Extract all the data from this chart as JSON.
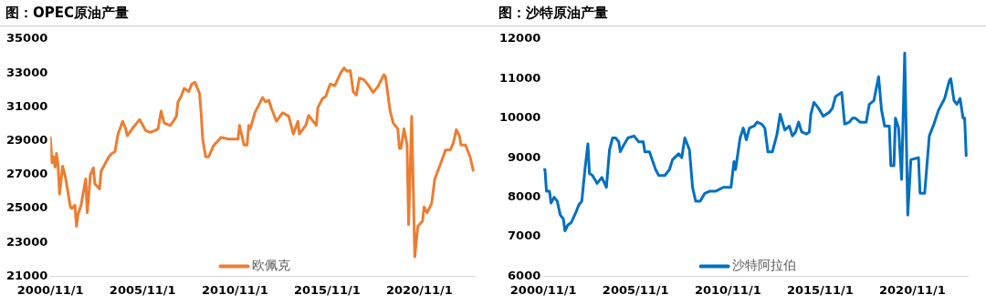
{
  "chart_data": [
    {
      "type": "line",
      "title": "图：OPEC原油产量",
      "series": [
        {
          "name": "欧佩克",
          "color": "#ed7d31",
          "x": [
            "2000-11",
            "2000-12",
            "2001-01",
            "2001-02",
            "2001-03",
            "2001-04",
            "2001-05",
            "2001-07",
            "2001-09",
            "2001-12",
            "2002-01",
            "2002-03",
            "2002-04",
            "2002-05",
            "2002-07",
            "2002-10",
            "2002-11",
            "2003-01",
            "2003-03",
            "2003-04",
            "2003-07",
            "2003-08",
            "2004-01",
            "2004-03",
            "2004-05",
            "2004-07",
            "2004-10",
            "2004-12",
            "2005-01",
            "2005-05",
            "2005-09",
            "2006-01",
            "2006-04",
            "2006-07",
            "2006-09",
            "2006-11",
            "2007-01",
            "2007-05",
            "2007-07",
            "2007-09",
            "2007-10",
            "2007-12",
            "2008-02",
            "2008-05",
            "2008-07",
            "2008-09",
            "2008-12",
            "2009-01",
            "2009-02",
            "2009-04",
            "2009-06",
            "2009-09",
            "2010-02",
            "2010-07",
            "2011-01",
            "2011-02",
            "2011-05",
            "2011-07",
            "2011-08",
            "2011-09",
            "2011-12",
            "2012-05",
            "2012-07",
            "2012-09",
            "2012-11",
            "2013-02",
            "2013-06",
            "2013-10",
            "2014-01",
            "2014-04",
            "2014-05",
            "2014-09",
            "2014-11",
            "2015-04",
            "2015-05",
            "2015-08",
            "2015-10",
            "2016-01",
            "2016-04",
            "2016-06",
            "2016-08",
            "2016-10",
            "2016-12",
            "2017-02",
            "2017-04",
            "2017-06",
            "2017-08",
            "2017-11",
            "2018-02",
            "2018-05",
            "2018-08",
            "2018-12",
            "2019-01",
            "2019-04",
            "2019-06",
            "2019-09",
            "2019-10",
            "2019-11",
            "2020-01",
            "2020-03",
            "2020-04",
            "2020-06",
            "2020-08",
            "2020-10",
            "2021-01",
            "2021-02",
            "2021-04",
            "2021-07",
            "2021-09",
            "2022-01",
            "2022-04",
            "2022-07",
            "2022-09",
            "2022-11",
            "2023-01",
            "2023-02",
            "2023-05",
            "2023-08",
            "2023-10"
          ],
          "values": [
            29200,
            27700,
            28050,
            27450,
            28250,
            27600,
            25850,
            27500,
            26750,
            25100,
            25000,
            25200,
            23950,
            24650,
            25200,
            26750,
            24750,
            27000,
            27400,
            26450,
            26150,
            27200,
            28050,
            28250,
            28350,
            29400,
            30150,
            29700,
            29300,
            29800,
            30250,
            29600,
            29500,
            29600,
            29700,
            30750,
            30050,
            29900,
            30150,
            30450,
            31300,
            31600,
            32100,
            31900,
            32350,
            32450,
            31800,
            30650,
            29100,
            28050,
            28050,
            28700,
            29200,
            29100,
            29100,
            29900,
            28750,
            28750,
            29900,
            29700,
            30650,
            31550,
            31300,
            31400,
            30850,
            30150,
            30650,
            30450,
            29400,
            30150,
            29400,
            29900,
            30500,
            29900,
            30950,
            31500,
            31600,
            32350,
            32250,
            32650,
            33050,
            33300,
            33100,
            33150,
            31900,
            31700,
            32700,
            32600,
            32250,
            31850,
            32200,
            32900,
            32750,
            30750,
            30050,
            29700,
            28550,
            28550,
            29700,
            28750,
            24050,
            30450,
            22150,
            23950,
            24250,
            25100,
            24750,
            25300,
            26750,
            27700,
            28450,
            28450,
            28850,
            29650,
            29300,
            28750,
            28750,
            28050,
            27250
          ]
        }
      ],
      "xlim": [
        "2000-11-01",
        "2023-11-01"
      ],
      "xticks": [
        {
          "value": "2000-11-01",
          "label": "2000/11/1"
        },
        {
          "value": "2005-11-01",
          "label": "2005/11/1"
        },
        {
          "value": "2010-11-01",
          "label": "2010/11/1"
        },
        {
          "value": "2015-11-01",
          "label": "2015/11/1"
        },
        {
          "value": "2020-11-01",
          "label": "2020/11/1"
        }
      ],
      "ylim": [
        21000,
        35000
      ],
      "yticks": [
        21000,
        23000,
        25000,
        27000,
        29000,
        31000,
        33000,
        35000
      ],
      "grid": false,
      "legend": "bottom",
      "marker": "none",
      "line_style": "solid"
    },
    {
      "type": "line",
      "title": "图：沙特原油产量",
      "series": [
        {
          "name": "沙特阿拉伯",
          "color": "#0070c0",
          "x": [
            "2000-11",
            "2000-12",
            "2001-01",
            "2001-03",
            "2001-04",
            "2001-06",
            "2001-08",
            "2001-10",
            "2001-12",
            "2002-01",
            "2002-03",
            "2002-05",
            "2002-08",
            "2002-10",
            "2002-12",
            "2003-02",
            "2003-04",
            "2003-05",
            "2003-07",
            "2003-10",
            "2004-01",
            "2004-04",
            "2004-06",
            "2004-08",
            "2004-10",
            "2004-12",
            "2005-01",
            "2005-03",
            "2005-06",
            "2005-10",
            "2006-01",
            "2006-04",
            "2006-05",
            "2006-08",
            "2006-12",
            "2007-02",
            "2007-06",
            "2007-09",
            "2007-11",
            "2008-03",
            "2008-05",
            "2008-07",
            "2008-10",
            "2008-12",
            "2009-02",
            "2009-05",
            "2009-08",
            "2009-11",
            "2010-03",
            "2010-08",
            "2010-12",
            "2011-01",
            "2011-03",
            "2011-04",
            "2011-07",
            "2011-09",
            "2011-11",
            "2012-01",
            "2012-04",
            "2012-06",
            "2012-09",
            "2012-11",
            "2013-01",
            "2013-04",
            "2013-07",
            "2013-09",
            "2013-12",
            "2014-03",
            "2014-05",
            "2014-07",
            "2014-09",
            "2014-11",
            "2015-02",
            "2015-04",
            "2015-05",
            "2015-07",
            "2015-10",
            "2016-01",
            "2016-05",
            "2016-07",
            "2016-09",
            "2016-11",
            "2017-01",
            "2017-03",
            "2017-06",
            "2017-08",
            "2017-10",
            "2018-01",
            "2018-05",
            "2018-07",
            "2018-10",
            "2019-01",
            "2019-03",
            "2019-05",
            "2019-08",
            "2019-09",
            "2019-11",
            "2019-12",
            "2020-02",
            "2020-04",
            "2020-06",
            "2020-08",
            "2020-10",
            "2021-03",
            "2021-04",
            "2021-07",
            "2021-10",
            "2022-01",
            "2022-04",
            "2022-08",
            "2022-11",
            "2022-12",
            "2023-02",
            "2023-04",
            "2023-06",
            "2023-08",
            "2023-09",
            "2023-10"
          ],
          "values": [
            8700,
            8700,
            8150,
            8150,
            7850,
            8000,
            7900,
            7550,
            7450,
            7150,
            7300,
            7350,
            7600,
            7800,
            7900,
            8700,
            9350,
            8600,
            8550,
            8350,
            8500,
            8250,
            9200,
            9500,
            9500,
            9400,
            9150,
            9300,
            9500,
            9550,
            9400,
            9400,
            9150,
            9150,
            8700,
            8550,
            8550,
            8700,
            8950,
            9100,
            9000,
            9500,
            9200,
            8250,
            7900,
            7900,
            8100,
            8150,
            8150,
            8250,
            8250,
            8250,
            8900,
            8700,
            9500,
            9750,
            9450,
            9750,
            9800,
            9900,
            9850,
            9750,
            9150,
            9150,
            9600,
            10100,
            9700,
            9800,
            9550,
            9650,
            9900,
            9650,
            9600,
            9650,
            10100,
            10400,
            10250,
            10050,
            10150,
            10250,
            10550,
            10600,
            10650,
            9850,
            9900,
            10000,
            10000,
            9900,
            9900,
            10350,
            10450,
            11050,
            10200,
            9800,
            9800,
            8800,
            8800,
            10000,
            9750,
            8450,
            11650,
            7550,
            8950,
            9000,
            8100,
            8100,
            9550,
            9850,
            10200,
            10500,
            10950,
            11000,
            10450,
            10350,
            10500,
            10000,
            10000,
            9050
          ]
        }
      ],
      "xlim": [
        "2000-11-01",
        "2023-11-01"
      ],
      "xticks": [
        {
          "value": "2000-11-01",
          "label": "2000/11/1"
        },
        {
          "value": "2005-11-01",
          "label": "2005/11/1"
        },
        {
          "value": "2010-11-01",
          "label": "2010/11/1"
        },
        {
          "value": "2015-11-01",
          "label": "2015/11/1"
        },
        {
          "value": "2020-11-01",
          "label": "2020/11/1"
        }
      ],
      "ylim": [
        6000,
        12000
      ],
      "yticks": [
        6000,
        7000,
        8000,
        9000,
        10000,
        11000,
        12000
      ],
      "grid": false,
      "legend": "bottom",
      "marker": "none",
      "line_style": "solid"
    }
  ]
}
